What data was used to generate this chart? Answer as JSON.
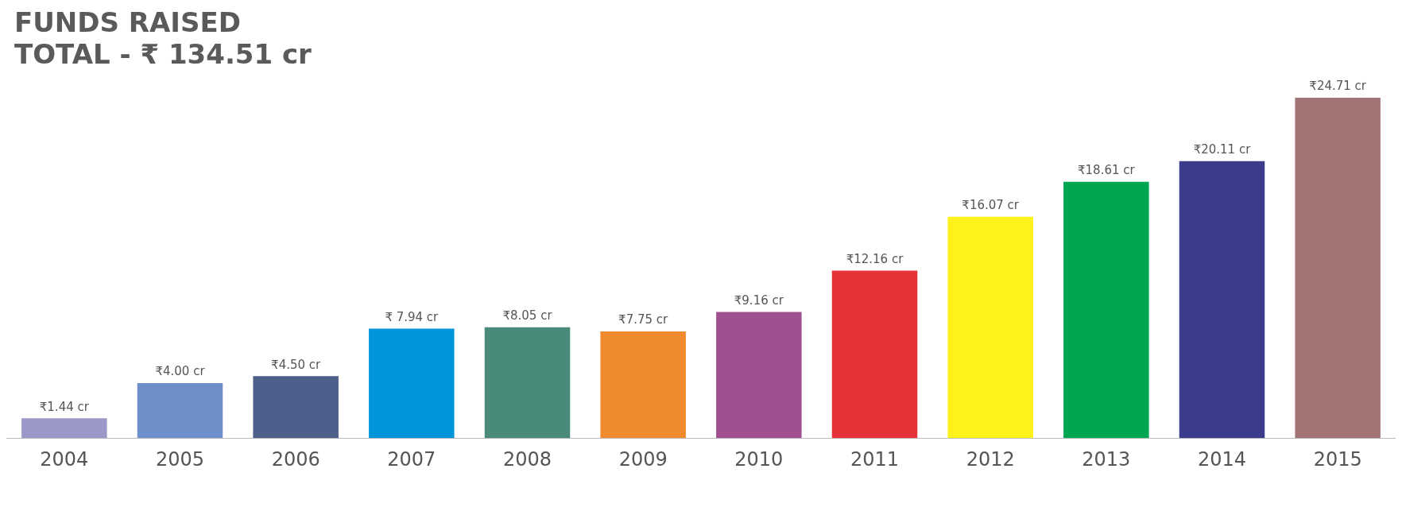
{
  "chart_data": {
    "type": "bar",
    "title": "FUNDS RAISED",
    "subtitle": "TOTAL - ₹ 134.51 cr",
    "categories": [
      "2004",
      "2005",
      "2006",
      "2007",
      "2008",
      "2009",
      "2010",
      "2011",
      "2012",
      "2013",
      "2014",
      "2015"
    ],
    "values": [
      1.44,
      4.0,
      4.5,
      7.94,
      8.05,
      7.75,
      9.16,
      12.16,
      16.07,
      18.61,
      20.11,
      24.71
    ],
    "value_labels": [
      "₹1.44 cr",
      "₹4.00 cr",
      "₹4.50 cr",
      "₹ 7.94 cr",
      "₹8.05 cr",
      "₹7.75 cr",
      "₹9.16 cr",
      "₹12.16 cr",
      "₹16.07 cr",
      "₹18.61 cr",
      "₹20.11 cr",
      "₹24.71 cr"
    ],
    "colors": [
      "#9b97c9",
      "#6f8fcb",
      "#4f5f8c",
      "#0095d9",
      "#4a8a7a",
      "#f08a2e",
      "#a05090",
      "#e8323a",
      "#fff21a",
      "#00a651",
      "#3c3c8c",
      "#a37474"
    ],
    "grid": false,
    "legend": false
  }
}
